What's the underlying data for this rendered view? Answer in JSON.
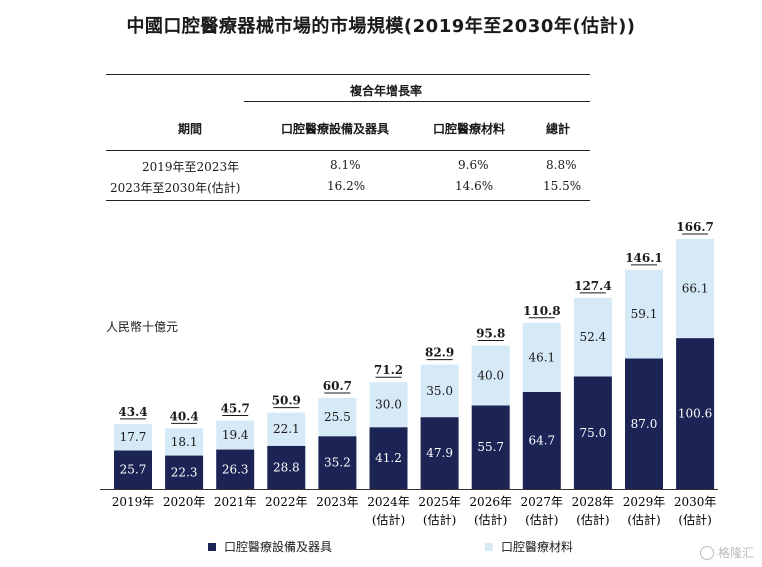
{
  "title": "中國口腔醫療器械市場的市場規模(2019年至2030年(估計))",
  "cagr_table": {
    "group_header": "複合年增長率",
    "col_period": "期間",
    "col_equipment": "口腔醫療設備及器具",
    "col_materials": "口腔醫療材料",
    "col_total": "總計",
    "rows": [
      {
        "period": "2019年至2023年",
        "equipment": "8.1%",
        "materials": "9.6%",
        "total": "8.8%"
      },
      {
        "period": "2023年至2030年(估計)",
        "equipment": "16.2%",
        "materials": "14.6%",
        "total": "15.5%"
      }
    ]
  },
  "unit_label": "人民幣十億元",
  "legend": {
    "equipment": "口腔醫療設備及器具",
    "materials": "口腔醫療材料"
  },
  "colors": {
    "equipment": "#1c2355",
    "materials": "#d6e9f7"
  },
  "brand_text": "格隆汇",
  "chart_data": {
    "type": "bar",
    "stacked": true,
    "title": "中國口腔醫療器械市場的市場規模(2019年至2030年(估計))",
    "ylabel": "人民幣十億元",
    "categories": [
      "2019年",
      "2020年",
      "2021年",
      "2022年",
      "2023年",
      "2024年",
      "2025年",
      "2026年",
      "2027年",
      "2028年",
      "2029年",
      "2030年"
    ],
    "category_sublabels": [
      "",
      "",
      "",
      "",
      "",
      "(估計)",
      "(估計)",
      "(估計)",
      "(估計)",
      "(估計)",
      "(估計)",
      "(估計)"
    ],
    "series": [
      {
        "name": "口腔醫療設備及器具",
        "values": [
          25.7,
          22.3,
          26.3,
          28.8,
          35.2,
          41.2,
          47.9,
          55.7,
          64.7,
          75.0,
          87.0,
          100.6
        ]
      },
      {
        "name": "口腔醫療材料",
        "values": [
          17.7,
          18.1,
          19.4,
          22.1,
          25.5,
          30.0,
          35.0,
          40.0,
          46.1,
          52.4,
          59.1,
          66.1
        ]
      }
    ],
    "totals": [
      43.4,
      40.4,
      45.7,
      50.9,
      60.7,
      71.2,
      82.9,
      95.8,
      110.8,
      127.4,
      146.1,
      166.7
    ],
    "legend_position": "bottom"
  }
}
